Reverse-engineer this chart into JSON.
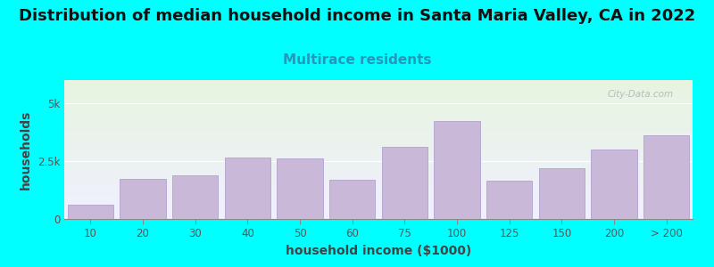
{
  "title": "Distribution of median household income in Santa Maria Valley, CA in 2022",
  "subtitle": "Multirace residents",
  "xlabel": "household income ($1000)",
  "ylabel": "households",
  "bg_outer": "#00FFFF",
  "bg_inner_top": "#e8f5e0",
  "bg_inner_bottom": "#f0f0ff",
  "bar_color": "#c9b8d8",
  "bar_edge_color": "#a898c8",
  "categories": [
    "10",
    "20",
    "30",
    "40",
    "50",
    "60",
    "75",
    "100",
    "125",
    "150",
    "200",
    "> 200"
  ],
  "values": [
    600,
    1750,
    1900,
    2650,
    2600,
    1700,
    3100,
    4250,
    1650,
    2200,
    3000,
    3600
  ],
  "ylim": [
    0,
    6000
  ],
  "ytick_vals": [
    0,
    2500,
    5000
  ],
  "ytick_labels": [
    "0",
    "2.5k",
    "5k"
  ],
  "title_fontsize": 13,
  "subtitle_fontsize": 11,
  "axis_label_fontsize": 10,
  "tick_fontsize": 8.5,
  "title_color": "#111111",
  "subtitle_color": "#2299bb",
  "axis_label_color": "#444444",
  "tick_color": "#555555",
  "watermark": "City-Data.com"
}
